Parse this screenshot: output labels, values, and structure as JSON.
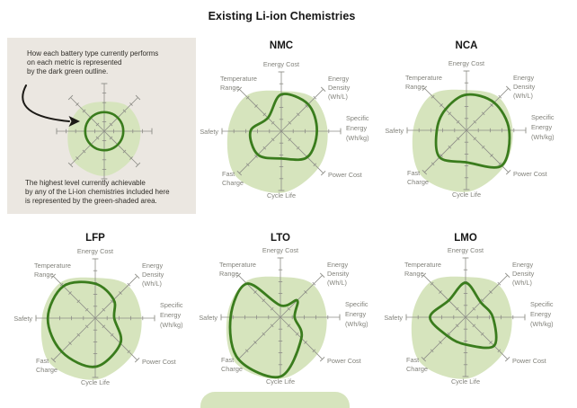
{
  "page": {
    "title": "Existing Li-ion Chemistries"
  },
  "explainer": {
    "top_lines": [
      "How each battery type currently performs",
      "on each metric is represented",
      "by the dark green outline."
    ],
    "bottom_lines": [
      "The highest level currently achievable",
      "by any of the Li-ion chemistries included here",
      "is represented by the green-shaded area."
    ]
  },
  "colors": {
    "outline_green": "#3a7c1d",
    "shade_green": "#d6e4bd",
    "axis_gray": "#8d8d87",
    "label_gray": "#82827b",
    "explainer_bg": "#ebe7e1",
    "arrow_black": "#1c1a16",
    "title_black": "#161616"
  },
  "chart_data": {
    "type": "radar",
    "title": "Existing Li-ion Chemistries",
    "scale_max": 5,
    "grid": "radial-ticks",
    "legend_position": "none",
    "axes": [
      {
        "label": "Energy Cost",
        "lines": [
          "Energy Cost"
        ]
      },
      {
        "label": "Energy Density (Wh/L)",
        "lines": [
          "Energy",
          "Density",
          "(Wh/L)"
        ]
      },
      {
        "label": "Specific Energy (Wh/kg)",
        "lines": [
          "Specific",
          "Energy",
          "(Wh/kg)"
        ]
      },
      {
        "label": "Power Cost",
        "lines": [
          "Power Cost"
        ]
      },
      {
        "label": "Cycle Life",
        "lines": [
          "Cycle Life"
        ]
      },
      {
        "label": "Fast Charge",
        "lines": [
          "Fast",
          "Charge"
        ]
      },
      {
        "label": "Safety",
        "lines": [
          "Safety"
        ]
      },
      {
        "label": "Temperature Range",
        "lines": [
          "Temperature",
          "Range"
        ]
      }
    ],
    "max_envelope": [
      3.4,
      3.9,
      3.9,
      4.4,
      5.2,
      5.4,
      4.5,
      4.2
    ],
    "series": [
      {
        "name": "NMC",
        "values": [
          3.1,
          3.2,
          3.0,
          3.1,
          2.3,
          2.8,
          2.6,
          1.6
        ]
      },
      {
        "name": "NCA",
        "values": [
          3.0,
          3.3,
          3.6,
          4.2,
          2.7,
          3.2,
          2.5,
          2.5
        ]
      },
      {
        "name": "LFP",
        "values": [
          2.9,
          2.2,
          1.6,
          3.0,
          4.1,
          4.0,
          4.0,
          3.8
        ]
      },
      {
        "name": "LTO",
        "values": [
          1.0,
          2.0,
          1.2,
          2.5,
          5.0,
          5.0,
          4.2,
          4.0
        ]
      },
      {
        "name": "LMO",
        "values": [
          2.9,
          1.8,
          2.3,
          3.4,
          2.3,
          2.2,
          3.0,
          2.0
        ]
      }
    ],
    "example": {
      "circle_value": 2,
      "envelope": [
        3.1,
        3.6,
        3.8,
        4.1,
        4.7,
        4.5,
        3.8,
        3.5
      ]
    }
  }
}
